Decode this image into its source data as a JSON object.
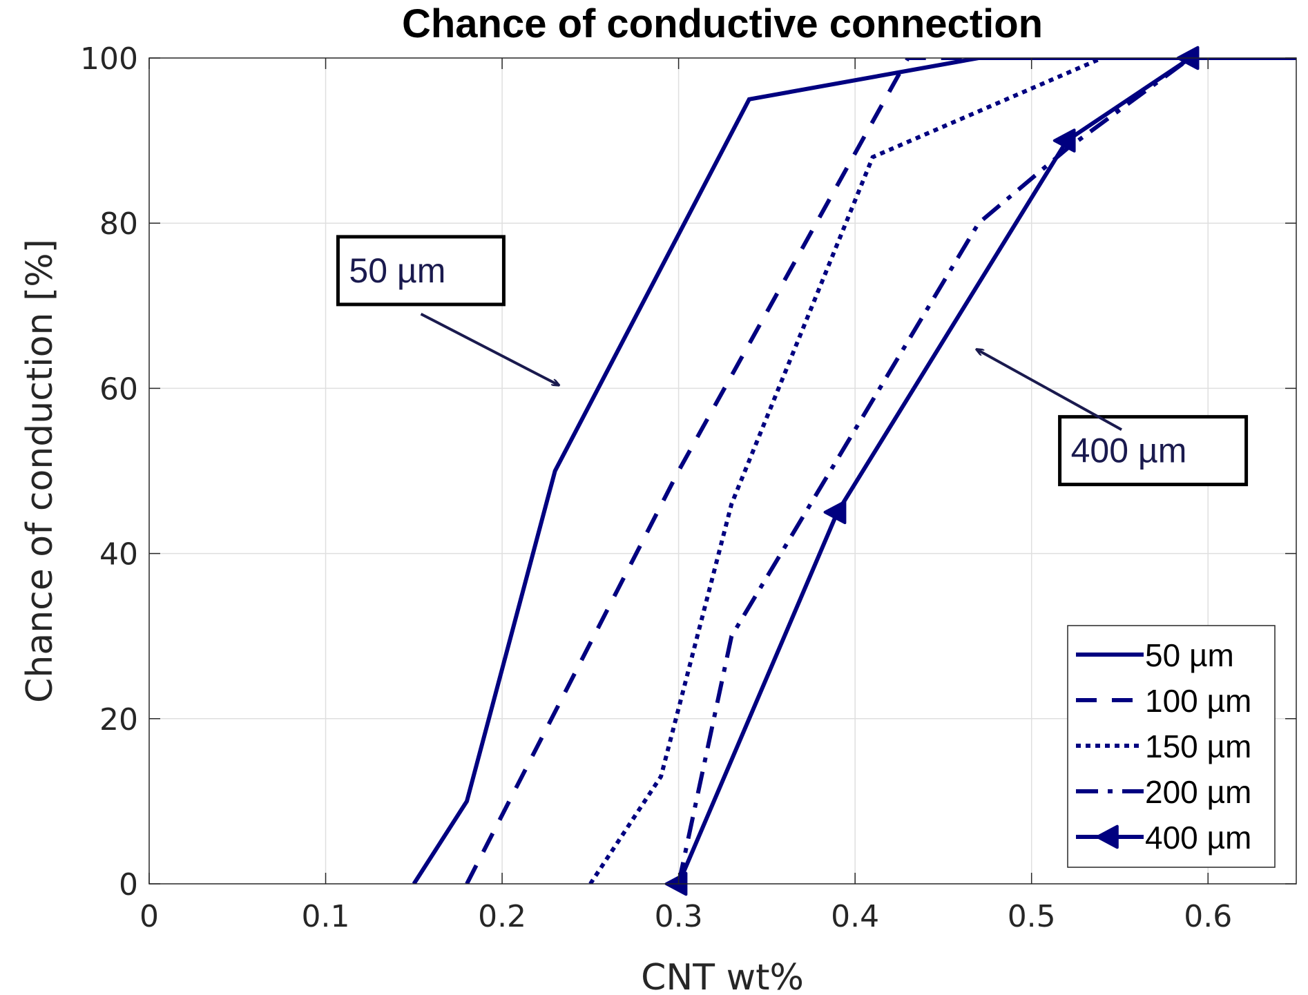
{
  "chart_data": {
    "type": "line",
    "title": "Chance of conductive connection",
    "xlabel": "CNT wt%",
    "ylabel": "Chance of conduction [%]",
    "xlim": [
      0,
      0.65
    ],
    "ylim": [
      0,
      100
    ],
    "xticks": [
      0,
      0.1,
      0.2,
      0.3,
      0.4,
      0.5,
      0.6
    ],
    "xtick_labels": [
      "0",
      "0.1",
      "0.2",
      "0.3",
      "0.4",
      "0.5",
      "0.6"
    ],
    "yticks": [
      0,
      20,
      40,
      60,
      80,
      100
    ],
    "ytick_labels": [
      "0",
      "20",
      "40",
      "60",
      "80",
      "100"
    ],
    "grid": true,
    "legend_position": "bottom-right",
    "line_color": "#000080",
    "series": [
      {
        "name": "50 µm",
        "style": "solid",
        "marker": "none",
        "x": [
          0.15,
          0.18,
          0.23,
          0.34,
          0.47,
          0.65
        ],
        "y": [
          0,
          10,
          50,
          95,
          100,
          100
        ]
      },
      {
        "name": "100 µm",
        "style": "dashed",
        "marker": "none",
        "x": [
          0.18,
          0.3,
          0.43,
          0.44,
          0.65
        ],
        "y": [
          0,
          50,
          100,
          100,
          100
        ]
      },
      {
        "name": "150 µm",
        "style": "dotted",
        "marker": "none",
        "x": [
          0.25,
          0.29,
          0.33,
          0.41,
          0.54,
          0.65
        ],
        "y": [
          0,
          13,
          46,
          88,
          100,
          100
        ]
      },
      {
        "name": "200 µm",
        "style": "dashdot",
        "marker": "none",
        "x": [
          0.3,
          0.33,
          0.47,
          0.52,
          0.59,
          0.65
        ],
        "y": [
          0,
          30,
          80,
          89,
          100,
          100
        ]
      },
      {
        "name": "400 µm",
        "style": "solid",
        "marker": "left-triangle",
        "x": [
          0.3,
          0.39,
          0.52,
          0.59,
          0.65
        ],
        "y": [
          0,
          45,
          90,
          100,
          100
        ],
        "marker_x": [
          0.3,
          0.39,
          0.52,
          0.59
        ],
        "marker_y": [
          0,
          45,
          90,
          100
        ]
      }
    ],
    "annotations": [
      {
        "text": "50 µm",
        "box_x": 0.107,
        "box_y": 72.5,
        "arrow_from": [
          0.154,
          69
        ],
        "arrow_to": [
          0.232,
          60.4
        ]
      },
      {
        "text": "400 µm",
        "box_x": 0.516,
        "box_y": 50.7,
        "arrow_from": [
          0.551,
          55
        ],
        "arrow_to": [
          0.469,
          64.7
        ]
      }
    ]
  }
}
